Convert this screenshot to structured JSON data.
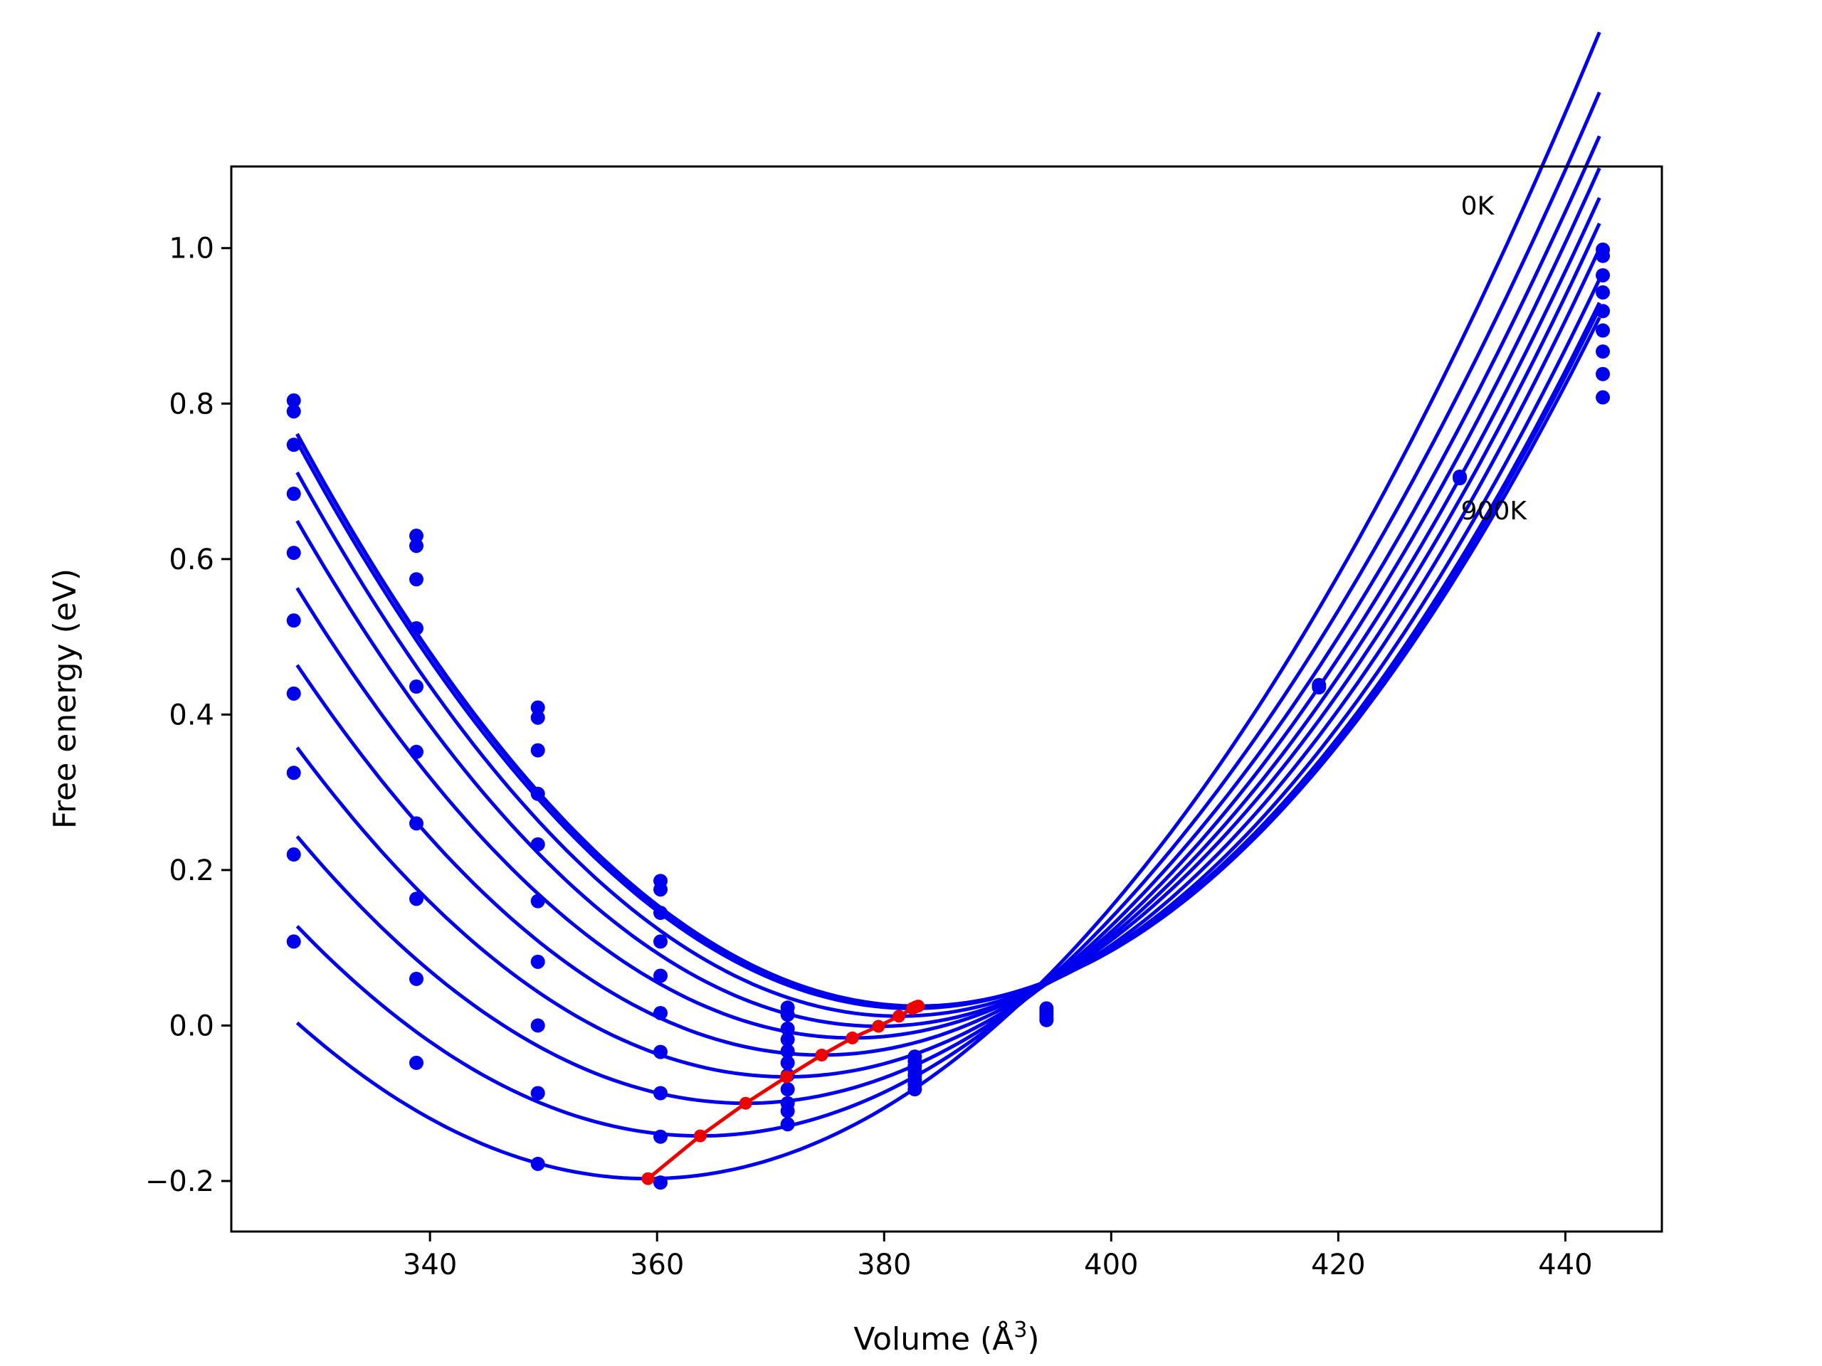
{
  "chart_data": {
    "type": "line",
    "title": "",
    "xlabel": "Volume (Å",
    "xlabel_sup": "3",
    "xlabel_end": ")",
    "ylabel": "Free energy (eV)",
    "xlim": [
      322.5,
      448.5
    ],
    "ylim": [
      -0.265,
      1.105
    ],
    "xticks": [
      340,
      360,
      380,
      400,
      420,
      440
    ],
    "yticks": [
      {
        "value": -0.2,
        "label": "−0.2"
      },
      {
        "value": 0.0,
        "label": "0.0"
      },
      {
        "value": 0.2,
        "label": "0.2"
      },
      {
        "value": 0.4,
        "label": "0.4"
      },
      {
        "value": 0.6,
        "label": "0.6"
      },
      {
        "value": 0.8,
        "label": "0.8"
      },
      {
        "value": 1.0,
        "label": "1.0"
      }
    ],
    "grid": false,
    "colors": {
      "fit": "#0000ee",
      "minima": "#ee0000",
      "axes": "#000000"
    },
    "annotations": [
      {
        "text": "0K",
        "x": 430.8,
        "y": 1.055
      },
      {
        "text": "900K",
        "x": 430.8,
        "y": 0.663
      }
    ],
    "fit_range": [
      328.3,
      443.0
    ],
    "volumes": [
      328.0,
      338.8,
      349.5,
      360.3,
      371.5,
      382.7,
      394.3,
      418.3,
      430.7,
      443.3
    ],
    "curves": [
      {
        "a": 0.000246,
        "v0": 383.0,
        "e0": 0.025
      },
      {
        "a": 0.000248,
        "v0": 382.8,
        "e0": 0.024
      },
      {
        "a": 0.000248,
        "v0": 382.5,
        "e0": 0.022
      },
      {
        "a": 0.000249,
        "v0": 381.3,
        "e0": 0.012
      },
      {
        "a": 0.000248,
        "v0": 379.5,
        "e0": -0.001
      },
      {
        "a": 0.000242,
        "v0": 377.2,
        "e0": -0.016
      },
      {
        "a": 0.000235,
        "v0": 374.5,
        "e0": -0.038
      },
      {
        "a": 0.000228,
        "v0": 371.4,
        "e0": -0.066
      },
      {
        "a": 0.00022,
        "v0": 367.8,
        "e0": -0.1
      },
      {
        "a": 0.000214,
        "v0": 363.8,
        "e0": -0.142
      },
      {
        "a": 0.00021,
        "v0": 359.2,
        "e0": -0.197
      }
    ],
    "points": [
      [
        328.0,
        0.804
      ],
      [
        328.0,
        0.79
      ],
      [
        328.0,
        0.747
      ],
      [
        328.0,
        0.684
      ],
      [
        328.0,
        0.608
      ],
      [
        328.0,
        0.521
      ],
      [
        328.0,
        0.427
      ],
      [
        328.0,
        0.325
      ],
      [
        328.0,
        0.22
      ],
      [
        328.0,
        0.108
      ],
      [
        338.8,
        0.63
      ],
      [
        338.8,
        0.617
      ],
      [
        338.8,
        0.574
      ],
      [
        338.8,
        0.511
      ],
      [
        338.8,
        0.436
      ],
      [
        338.8,
        0.352
      ],
      [
        338.8,
        0.26
      ],
      [
        338.8,
        0.163
      ],
      [
        338.8,
        0.06
      ],
      [
        338.8,
        -0.048
      ],
      [
        349.5,
        0.409
      ],
      [
        349.5,
        0.396
      ],
      [
        349.5,
        0.354
      ],
      [
        349.5,
        0.298
      ],
      [
        349.5,
        0.233
      ],
      [
        349.5,
        0.16
      ],
      [
        349.5,
        0.082
      ],
      [
        349.5,
        0.0
      ],
      [
        349.5,
        -0.087
      ],
      [
        349.5,
        -0.178
      ],
      [
        360.3,
        0.186
      ],
      [
        360.3,
        0.175
      ],
      [
        360.3,
        0.145
      ],
      [
        360.3,
        0.108
      ],
      [
        360.3,
        0.064
      ],
      [
        360.3,
        0.016
      ],
      [
        360.3,
        -0.034
      ],
      [
        360.3,
        -0.087
      ],
      [
        360.3,
        -0.143
      ],
      [
        360.3,
        -0.202
      ],
      [
        371.5,
        0.023
      ],
      [
        371.5,
        0.014
      ],
      [
        371.5,
        -0.004
      ],
      [
        371.5,
        -0.018
      ],
      [
        371.5,
        -0.033
      ],
      [
        371.5,
        -0.048
      ],
      [
        371.5,
        -0.064
      ],
      [
        371.5,
        -0.082
      ],
      [
        371.5,
        -0.1
      ],
      [
        371.5,
        -0.11
      ],
      [
        371.5,
        -0.127
      ],
      [
        382.7,
        -0.04
      ],
      [
        382.7,
        -0.046
      ],
      [
        382.7,
        -0.052
      ],
      [
        382.7,
        -0.058
      ],
      [
        382.7,
        -0.064
      ],
      [
        382.7,
        -0.07
      ],
      [
        382.7,
        -0.076
      ],
      [
        382.7,
        -0.082
      ],
      [
        394.3,
        0.022
      ],
      [
        394.3,
        0.018
      ],
      [
        394.3,
        0.014
      ],
      [
        394.3,
        0.01
      ],
      [
        394.3,
        0.007
      ],
      [
        418.3,
        0.438
      ],
      [
        418.3,
        0.435
      ],
      [
        430.7,
        0.706
      ],
      [
        430.7,
        0.704
      ],
      [
        443.3,
        0.998
      ],
      [
        443.3,
        0.99
      ],
      [
        443.3,
        0.965
      ],
      [
        443.3,
        0.943
      ],
      [
        443.3,
        0.919
      ],
      [
        443.3,
        0.894
      ],
      [
        443.3,
        0.867
      ],
      [
        443.3,
        0.838
      ],
      [
        443.3,
        0.808
      ]
    ],
    "minima": [
      {
        "x": 383.0,
        "y": 0.025
      },
      {
        "x": 382.8,
        "y": 0.024
      },
      {
        "x": 382.5,
        "y": 0.022
      },
      {
        "x": 381.3,
        "y": 0.012
      },
      {
        "x": 379.5,
        "y": -0.001
      },
      {
        "x": 377.2,
        "y": -0.016
      },
      {
        "x": 374.5,
        "y": -0.038
      },
      {
        "x": 371.4,
        "y": -0.066
      },
      {
        "x": 367.8,
        "y": -0.1
      },
      {
        "x": 363.8,
        "y": -0.142
      },
      {
        "x": 359.2,
        "y": -0.197
      }
    ]
  }
}
